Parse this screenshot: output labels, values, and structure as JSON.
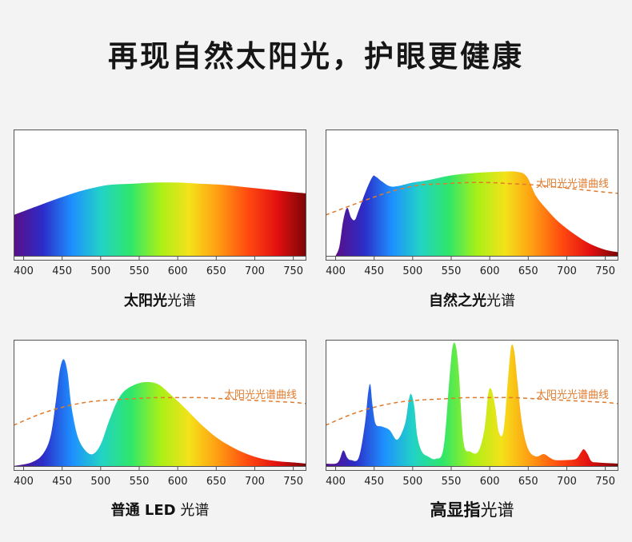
{
  "headline": "再现自然太阳光，护眼更健康",
  "colors": {
    "background": "#f3f3f3",
    "frame": "#555555",
    "sun_curve": "#e07a2c",
    "spectrum_gradient": [
      "#5a0f87",
      "#2c2cc8",
      "#1e90ff",
      "#22d3c5",
      "#2ee66b",
      "#a8f018",
      "#f4e21a",
      "#ff9b12",
      "#ff4a10",
      "#e31010",
      "#7a0505"
    ]
  },
  "chart_data": [
    {
      "type": "area",
      "panel": "top-left",
      "caption_bold": "太阳光",
      "caption_normal": "光谱",
      "xlabel": "",
      "ylabel": "",
      "xlim": [
        387,
        767
      ],
      "ylim": [
        0,
        1
      ],
      "xticks": [
        400,
        450,
        500,
        550,
        600,
        650,
        700,
        750
      ],
      "series_label": "",
      "series": [
        {
          "name": "",
          "x": [
            387,
            420,
            450,
            480,
            510,
            540,
            570,
            600,
            630,
            660,
            690,
            720,
            750,
            767
          ],
          "y": [
            0.34,
            0.42,
            0.49,
            0.55,
            0.59,
            0.6,
            0.61,
            0.61,
            0.6,
            0.59,
            0.57,
            0.55,
            0.53,
            0.52
          ]
        }
      ]
    },
    {
      "type": "area",
      "panel": "top-right",
      "caption_bold": "自然之光",
      "caption_normal": "光谱",
      "xlabel": "",
      "ylabel": "",
      "xlim": [
        387,
        767
      ],
      "ylim": [
        0,
        1
      ],
      "xticks": [
        400,
        450,
        500,
        550,
        600,
        650,
        700,
        750
      ],
      "reference_label": "太阳光光谱曲线",
      "reference": {
        "x": [
          387,
          420,
          450,
          480,
          510,
          540,
          570,
          600,
          630,
          660,
          690,
          720,
          750,
          767
        ],
        "y": [
          0.34,
          0.42,
          0.49,
          0.55,
          0.59,
          0.6,
          0.61,
          0.61,
          0.6,
          0.59,
          0.57,
          0.55,
          0.53,
          0.52
        ]
      },
      "series": [
        {
          "name": "",
          "x": [
            400,
            405,
            410,
            415,
            420,
            425,
            430,
            440,
            448,
            452,
            460,
            470,
            480,
            500,
            520,
            550,
            580,
            610,
            635,
            648,
            660,
            675,
            690,
            710,
            730,
            750,
            767
          ],
          "y": [
            0.0,
            0.08,
            0.3,
            0.4,
            0.32,
            0.3,
            0.38,
            0.55,
            0.66,
            0.66,
            0.62,
            0.58,
            0.58,
            0.61,
            0.63,
            0.67,
            0.69,
            0.7,
            0.7,
            0.66,
            0.5,
            0.38,
            0.28,
            0.18,
            0.1,
            0.05,
            0.03
          ]
        }
      ]
    },
    {
      "type": "area",
      "panel": "bottom-left",
      "caption_bold": "普通 LED",
      "caption_normal": " 光谱",
      "xlabel": "",
      "ylabel": "",
      "xlim": [
        387,
        767
      ],
      "ylim": [
        0,
        1
      ],
      "xticks": [
        400,
        450,
        500,
        550,
        600,
        650,
        700,
        750
      ],
      "reference_label": "太阳光光谱曲线",
      "reference": {
        "x": [
          387,
          420,
          450,
          480,
          510,
          540,
          570,
          600,
          630,
          660,
          690,
          720,
          750,
          767
        ],
        "y": [
          0.34,
          0.43,
          0.49,
          0.53,
          0.55,
          0.56,
          0.57,
          0.57,
          0.57,
          0.56,
          0.55,
          0.54,
          0.53,
          0.52
        ]
      },
      "series": [
        {
          "name": "",
          "x": [
            387,
            410,
            425,
            435,
            442,
            447,
            452,
            457,
            462,
            470,
            480,
            490,
            500,
            510,
            520,
            530,
            545,
            560,
            575,
            590,
            610,
            630,
            650,
            670,
            690,
            710,
            730,
            750,
            767
          ],
          "y": [
            0.0,
            0.03,
            0.1,
            0.25,
            0.55,
            0.8,
            0.89,
            0.78,
            0.5,
            0.25,
            0.13,
            0.1,
            0.18,
            0.36,
            0.52,
            0.62,
            0.68,
            0.7,
            0.68,
            0.6,
            0.48,
            0.35,
            0.24,
            0.16,
            0.1,
            0.06,
            0.04,
            0.03,
            0.02
          ]
        }
      ]
    },
    {
      "type": "area",
      "panel": "bottom-right",
      "caption_bold": "高显指",
      "caption_normal": "光谱",
      "xlabel": "",
      "ylabel": "",
      "xlim": [
        387,
        767
      ],
      "ylim": [
        0,
        1
      ],
      "xticks": [
        400,
        450,
        500,
        550,
        600,
        650,
        700,
        750
      ],
      "reference_label": "太阳光光谱曲线",
      "reference": {
        "x": [
          387,
          420,
          450,
          480,
          510,
          540,
          570,
          600,
          630,
          660,
          690,
          720,
          750,
          767
        ],
        "y": [
          0.34,
          0.43,
          0.49,
          0.53,
          0.55,
          0.56,
          0.57,
          0.57,
          0.57,
          0.56,
          0.55,
          0.54,
          0.53,
          0.52
        ]
      },
      "series": [
        {
          "name": "",
          "x": [
            387,
            400,
            405,
            410,
            415,
            420,
            430,
            438,
            442,
            445,
            448,
            452,
            460,
            470,
            480,
            490,
            495,
            498,
            502,
            506,
            512,
            520,
            530,
            540,
            548,
            552,
            556,
            560,
            566,
            575,
            585,
            593,
            598,
            602,
            607,
            612,
            618,
            624,
            628,
            632,
            636,
            642,
            650,
            660,
            670,
            678,
            685,
            700,
            712,
            718,
            722,
            727,
            732,
            740,
            767
          ],
          "y": [
            0.02,
            0.02,
            0.05,
            0.13,
            0.07,
            0.05,
            0.07,
            0.35,
            0.6,
            0.68,
            0.5,
            0.35,
            0.33,
            0.3,
            0.22,
            0.35,
            0.55,
            0.6,
            0.5,
            0.25,
            0.12,
            0.08,
            0.06,
            0.15,
            0.75,
            1.0,
            1.0,
            0.78,
            0.2,
            0.12,
            0.12,
            0.3,
            0.6,
            0.64,
            0.5,
            0.28,
            0.3,
            0.75,
            1.0,
            0.95,
            0.7,
            0.35,
            0.14,
            0.08,
            0.1,
            0.07,
            0.05,
            0.05,
            0.06,
            0.11,
            0.14,
            0.1,
            0.04,
            0.03,
            0.02
          ]
        }
      ]
    }
  ]
}
